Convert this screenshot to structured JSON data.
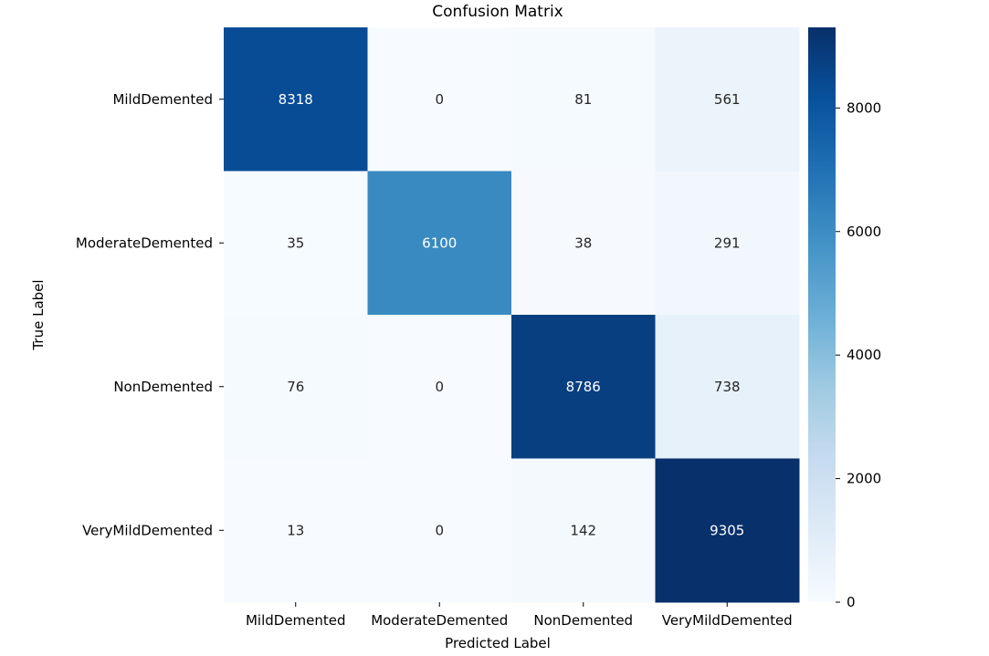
{
  "chart_data": {
    "type": "heatmap",
    "title": "Confusion Matrix",
    "xlabel": "Predicted Label",
    "ylabel": "True Label",
    "x_categories": [
      "MildDemented",
      "ModerateDemented",
      "NonDemented",
      "VeryMildDemented"
    ],
    "y_categories": [
      "MildDemented",
      "ModerateDemented",
      "NonDemented",
      "VeryMildDemented"
    ],
    "values": [
      [
        8318,
        0,
        81,
        561
      ],
      [
        35,
        6100,
        38,
        291
      ],
      [
        76,
        0,
        8786,
        738
      ],
      [
        13,
        0,
        142,
        9305
      ]
    ],
    "colormap": "Blues",
    "colorbar": {
      "min": 0,
      "max": 9305,
      "ticks": [
        0,
        2000,
        4000,
        6000,
        8000
      ]
    }
  }
}
